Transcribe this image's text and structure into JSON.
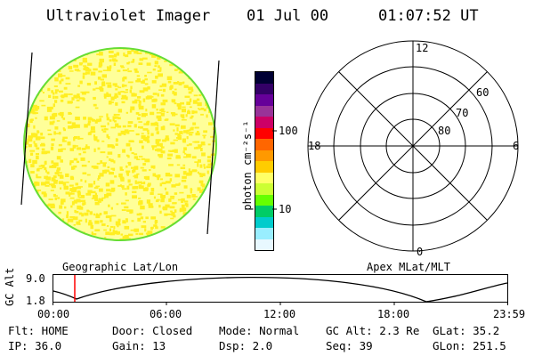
{
  "header": {
    "title": "Ultraviolet Imager",
    "date": "01 Jul 00",
    "time": "01:07:52 UT"
  },
  "colorbar": {
    "unit_label": "photon cm⁻²s⁻¹",
    "tick_100": "100",
    "tick_10": "10",
    "colors": [
      "#000033",
      "#330066",
      "#660099",
      "#993399",
      "#cc0066",
      "#ff0000",
      "#ff6600",
      "#ff9900",
      "#ffcc00",
      "#ffff66",
      "#ccff33",
      "#66ff00",
      "#00cc66",
      "#00cccc",
      "#99eeff",
      "#e8f8ff"
    ]
  },
  "image": {
    "fill": "#ffff99",
    "speckle": "#ffee22",
    "limb": "#66dd33"
  },
  "polar": {
    "mlt_labels": {
      "top": "12",
      "left": "18",
      "right": "6",
      "bottom": "0"
    },
    "lat_labels": [
      "60",
      "70",
      "80"
    ]
  },
  "projection_labels": {
    "left": "Geographic Lat/Lon",
    "right": "Apex MLat/MLT"
  },
  "altitude_plot": {
    "ylabel": "GC Alt",
    "y_ticks": [
      "9.0",
      "1.8"
    ],
    "x_ticks": [
      "00:00",
      "06:00",
      "12:00",
      "18:00",
      "23:59"
    ],
    "current_time_marker_color": "#ff0000"
  },
  "info": {
    "flt": "Flt: HOME",
    "door": "Door: Closed",
    "mode": "Mode: Normal",
    "gcalt": "GC Alt: 2.3 Re",
    "glat": "GLat:  35.2",
    "ip": "IP: 36.0",
    "gain": "Gain: 13",
    "dsp": "Dsp:    2.0",
    "seq": "Seq: 39",
    "glon": "GLon: 251.5"
  }
}
